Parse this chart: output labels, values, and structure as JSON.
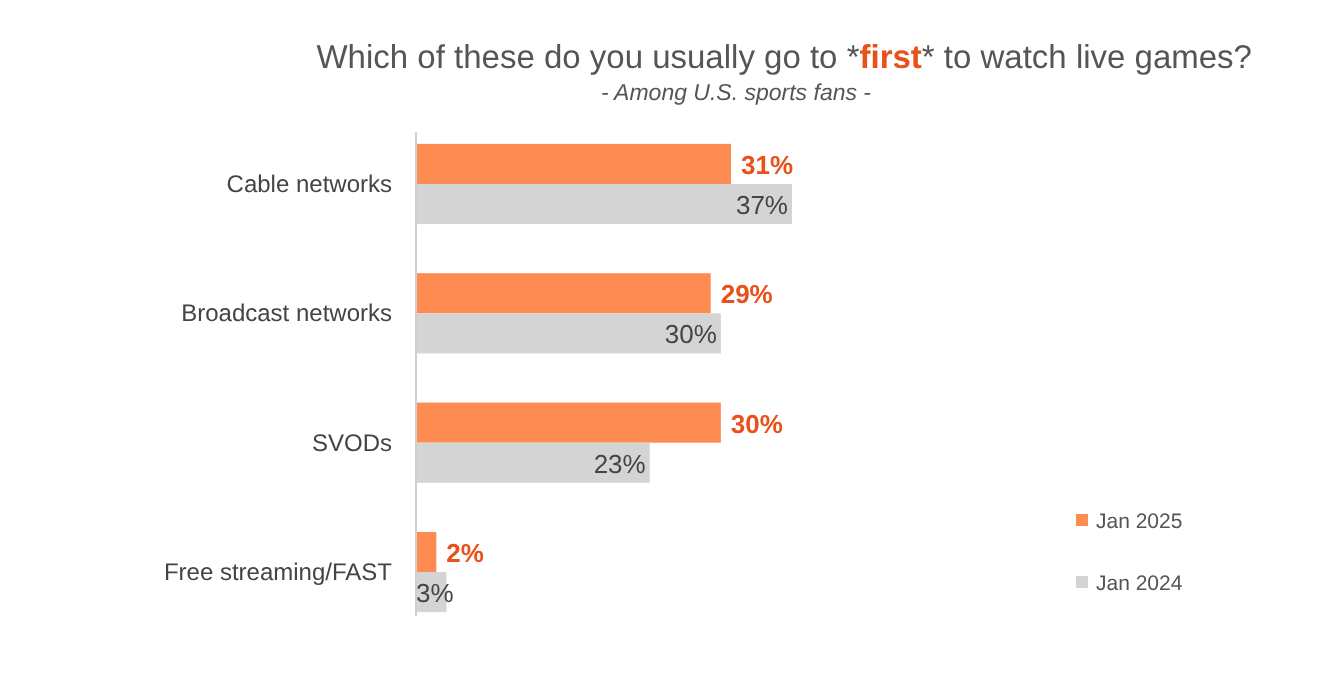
{
  "chart_data": {
    "type": "bar",
    "orientation": "horizontal",
    "title": "Which of these do you usually go to *first* to watch live games?",
    "subtitle": "- Among U.S. sports fans -",
    "categories": [
      "Cable networks",
      "Broadcast networks",
      "SVODs",
      "Free streaming/FAST"
    ],
    "series": [
      {
        "name": "Jan 2025",
        "color": "#fe8c52",
        "values": [
          31,
          29,
          30,
          2
        ],
        "value_labels": [
          "31%",
          "29%",
          "30%",
          "2%"
        ]
      },
      {
        "name": "Jan 2024",
        "color": "#d4d4d4",
        "values": [
          37,
          30,
          23,
          3
        ],
        "value_labels": [
          "37%",
          "30%",
          "23%",
          "3%"
        ]
      }
    ],
    "legend": "right"
  }
}
